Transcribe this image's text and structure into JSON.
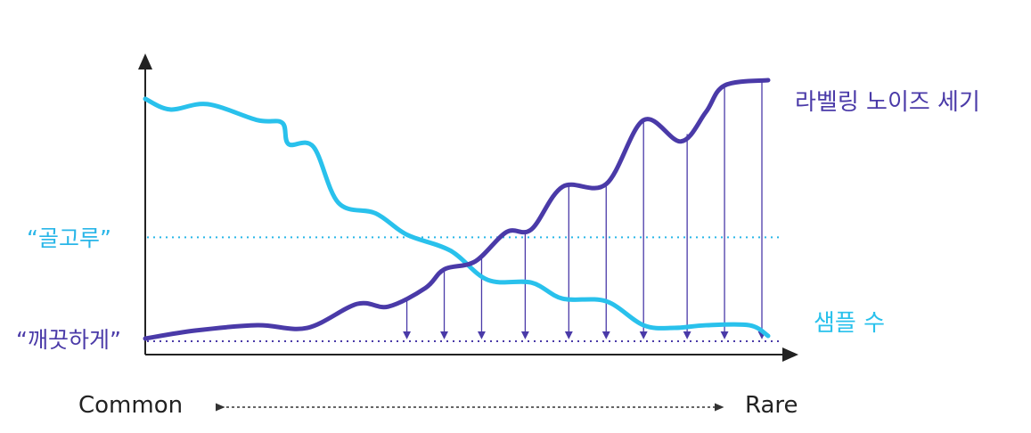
{
  "chart_data": {
    "type": "line",
    "title": "",
    "xlabel": "",
    "ylabel": "",
    "x_axis_extremes": {
      "left": "Common",
      "right": "Rare"
    },
    "reference_levels": [
      {
        "label": "“골고루”",
        "value": 0.43,
        "color": "#29b6e8",
        "style": "dotted"
      },
      {
        "label": "“깨끗하게”",
        "value": 0.04,
        "color": "#4a3aa8",
        "style": "dotted"
      }
    ],
    "series": [
      {
        "name": "샘플 수",
        "color": "#29c1ec",
        "x": [
          0,
          0.04,
          0.1,
          0.18,
          0.22,
          0.23,
          0.27,
          0.31,
          0.37,
          0.42,
          0.49,
          0.55,
          0.62,
          0.67,
          0.74,
          0.8,
          0.85,
          0.9,
          0.97,
          1.0
        ],
        "values": [
          0.95,
          0.91,
          0.93,
          0.87,
          0.86,
          0.78,
          0.77,
          0.56,
          0.52,
          0.44,
          0.38,
          0.27,
          0.26,
          0.2,
          0.19,
          0.1,
          0.09,
          0.1,
          0.1,
          0.06
        ]
      },
      {
        "name": "라벨링 노이즈 세기",
        "color": "#4a3aa8",
        "x": [
          0,
          0.08,
          0.18,
          0.26,
          0.34,
          0.39,
          0.45,
          0.48,
          0.53,
          0.58,
          0.62,
          0.67,
          0.74,
          0.8,
          0.86,
          0.9,
          0.93,
          1.0
        ],
        "values": [
          0.05,
          0.08,
          0.1,
          0.09,
          0.18,
          0.17,
          0.24,
          0.31,
          0.34,
          0.45,
          0.46,
          0.62,
          0.63,
          0.87,
          0.79,
          0.9,
          1.0,
          1.02
        ]
      }
    ],
    "arrow_x": [
      0.42,
      0.48,
      0.54,
      0.61,
      0.68,
      0.74,
      0.8,
      0.87,
      0.93,
      0.99
    ],
    "ylim": [
      0,
      1.05
    ],
    "xlim": [
      0,
      1.0
    ],
    "grid": false,
    "legend": "inline-right"
  }
}
